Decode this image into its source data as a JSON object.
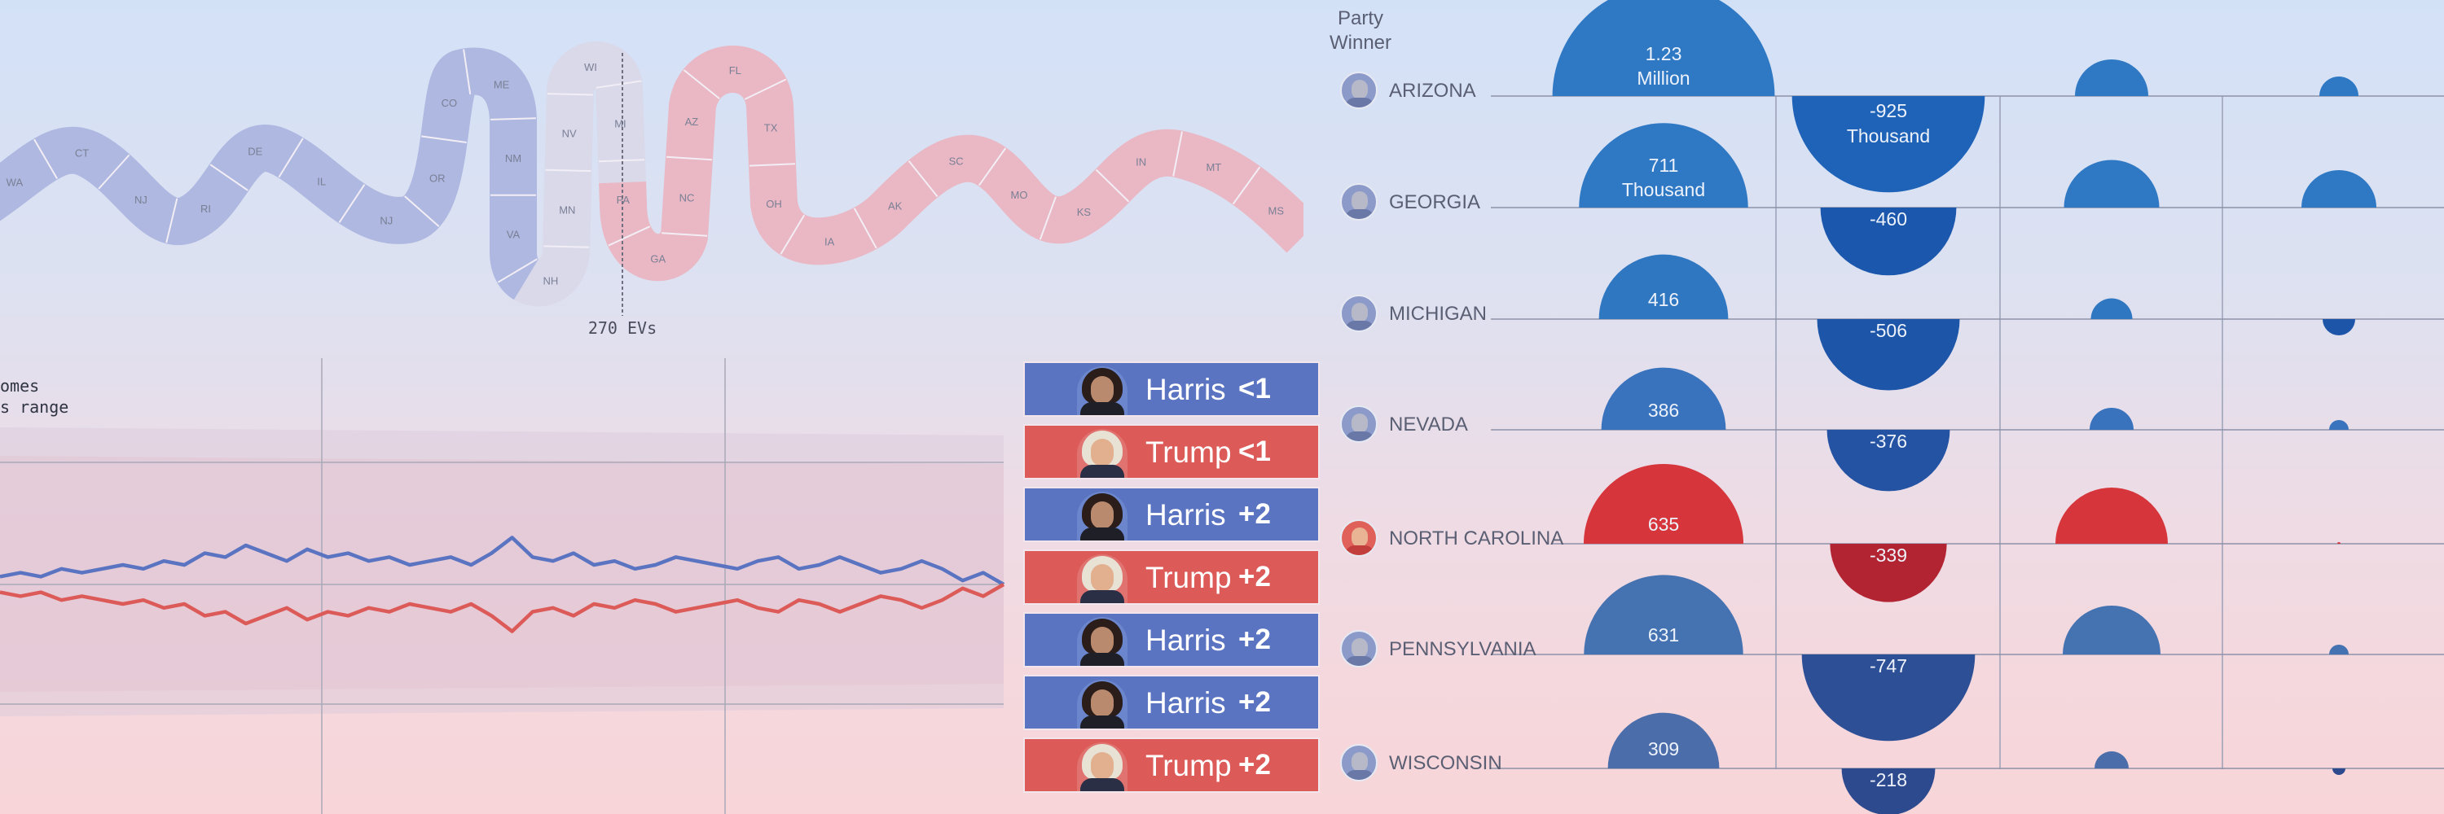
{
  "colors": {
    "dem": "#5a74c2",
    "rep": "#dc5a57",
    "dem_snake": "#aeb8e0",
    "tossup_snake": "#d9d9ea",
    "rep_snake": "#e9b8c4"
  },
  "snake": {
    "states": [
      "WA",
      "CT",
      "NJ",
      "RI",
      "DE",
      "IL",
      "NJ",
      "OR",
      "CO",
      "ME",
      "NM",
      "VA",
      "NH",
      "MN",
      "NV",
      "WI",
      "MI",
      "PA",
      "GA",
      "NC",
      "AZ",
      "FL",
      "TX",
      "OH",
      "IA",
      "AK",
      "SC",
      "MO",
      "KS",
      "IN",
      "MT",
      "MS"
    ],
    "ev_label": "270 EVs"
  },
  "time_chart": {
    "legend_lines": [
      "omes",
      "s range"
    ]
  },
  "cards": [
    {
      "name": "Harris",
      "margin": "<1",
      "party": "dem"
    },
    {
      "name": "Trump",
      "margin": "<1",
      "party": "rep"
    },
    {
      "name": "Harris",
      "margin": "+2",
      "party": "dem"
    },
    {
      "name": "Trump",
      "margin": "+2",
      "party": "rep"
    },
    {
      "name": "Harris",
      "margin": "+2",
      "party": "dem"
    },
    {
      "name": "Harris",
      "margin": "+2",
      "party": "dem"
    },
    {
      "name": "Trump",
      "margin": "+2",
      "party": "rep"
    }
  ],
  "table": {
    "header": {
      "line1": "Party",
      "line2": "Winner"
    },
    "states": [
      {
        "name": "ARIZONA",
        "winner": "dem"
      },
      {
        "name": "GEORGIA",
        "winner": "dem"
      },
      {
        "name": "MICHIGAN",
        "winner": "dem"
      },
      {
        "name": "NEVADA",
        "winner": "dem"
      },
      {
        "name": "NORTH CAROLINA",
        "winner": "rep"
      },
      {
        "name": "PENNSYLVANIA",
        "winner": "dem"
      },
      {
        "name": "WISCONSIN",
        "winner": "dem"
      }
    ]
  },
  "chart_data": [
    {
      "type": "line",
      "title": "",
      "series": [
        {
          "values": [
            0.52,
            0.53,
            0.52,
            0.54,
            0.53,
            0.54,
            0.55,
            0.54,
            0.56,
            0.55,
            0.58,
            0.57,
            0.6,
            0.58,
            0.56,
            0.59,
            0.57,
            0.58,
            0.56,
            0.57,
            0.55,
            0.56,
            0.57,
            0.55,
            0.58,
            0.62,
            0.57,
            0.56,
            0.58,
            0.55,
            0.56,
            0.54,
            0.55,
            0.57,
            0.56,
            0.55,
            0.54,
            0.56,
            0.57,
            0.54,
            0.55,
            0.57,
            0.55,
            0.53,
            0.54,
            0.56,
            0.54,
            0.51,
            0.53,
            0.5
          ]
        },
        {
          "values": [
            0.48,
            0.47,
            0.48,
            0.46,
            0.47,
            0.46,
            0.45,
            0.46,
            0.44,
            0.45,
            0.42,
            0.43,
            0.4,
            0.42,
            0.44,
            0.41,
            0.43,
            0.42,
            0.44,
            0.43,
            0.45,
            0.44,
            0.43,
            0.45,
            0.42,
            0.38,
            0.43,
            0.44,
            0.42,
            0.45,
            0.44,
            0.46,
            0.45,
            0.43,
            0.44,
            0.45,
            0.46,
            0.44,
            0.43,
            0.46,
            0.45,
            0.43,
            0.45,
            0.47,
            0.46,
            0.44,
            0.46,
            0.49,
            0.47,
            0.5
          ]
        }
      ]
    },
    {
      "type": "bubble",
      "title": "",
      "rows": [
        "ARIZONA",
        "GEORGIA",
        "MICHIGAN",
        "NEVADA",
        "NORTH CAROLINA",
        "PENNSYLVANIA",
        "WISCONSIN"
      ],
      "col1_values": [
        1230000,
        711000,
        416000,
        386000,
        635000,
        631000,
        309000
      ],
      "col1_labels": [
        [
          "1.23",
          "Million"
        ],
        [
          "711",
          "Thousand"
        ],
        [
          "416"
        ],
        [
          "386"
        ],
        [
          "635"
        ],
        [
          "631"
        ],
        [
          "309"
        ]
      ],
      "col2_values": [
        -925000,
        -460000,
        -506000,
        -376000,
        -339000,
        -747000,
        -218000
      ],
      "col2_labels": [
        [
          "-925",
          "Thousand"
        ],
        [
          "-460"
        ],
        [
          "-506"
        ],
        [
          "-376"
        ],
        [
          "-339"
        ],
        [
          "-747"
        ],
        [
          "-218"
        ]
      ],
      "col3_values": [
        0.3,
        0.39,
        0.17,
        0.18,
        0.46,
        0.4,
        0.14
      ],
      "col4_values": [
        0.12,
        0.23,
        0.1,
        0.06,
        0.01,
        0.06,
        0.04
      ]
    }
  ]
}
